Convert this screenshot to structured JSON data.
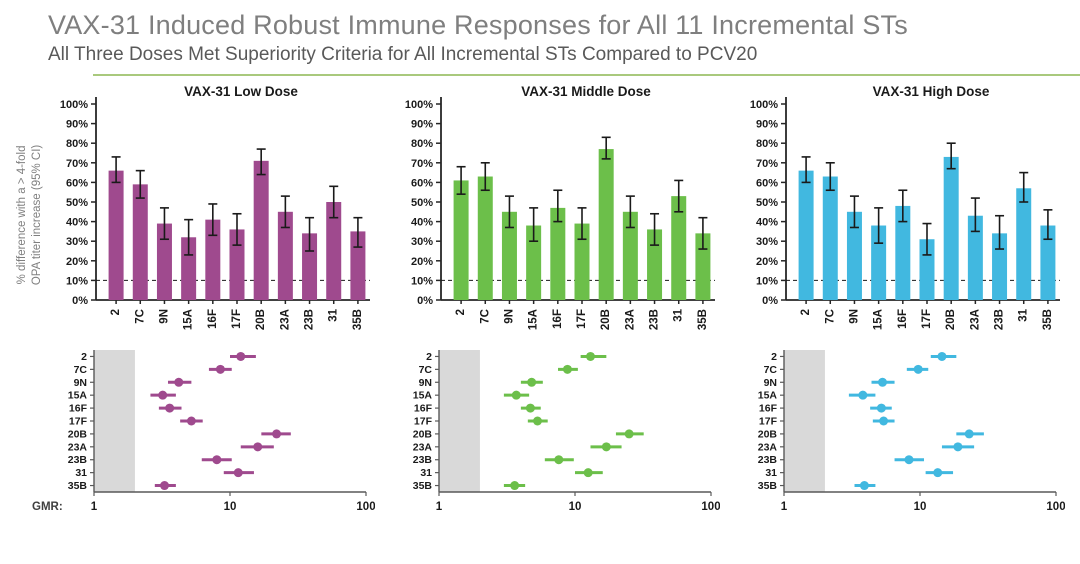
{
  "slide": {
    "title": "VAX-31 Induced Robust Immune Responses for All 11 Incremental STs",
    "subtitle": "All Three Doses Met Superiority Criteria for All Incremental STs Compared to PCV20",
    "accent_color": "#a9c97d"
  },
  "y_axis_label": {
    "line1": "% difference with a > 4-fold",
    "line2": "OPA titer increase (95% CI)"
  },
  "serotypes": [
    "2",
    "7C",
    "9N",
    "15A",
    "16F",
    "17F",
    "20B",
    "23A",
    "23B",
    "31",
    "35B"
  ],
  "chart_data": [
    {
      "type": "bar",
      "title": "VAX-31 Low Dose",
      "color": "#9f4a8e",
      "ylabel": "% difference with a > 4-fold OPA titer increase (95% CI)",
      "ylim": [
        0,
        100
      ],
      "ytick_step": 10,
      "ytick_suffix": "%",
      "threshold_line": 10,
      "grid": false,
      "categories": [
        "2",
        "7C",
        "9N",
        "15A",
        "16F",
        "17F",
        "20B",
        "23A",
        "23B",
        "31",
        "35B"
      ],
      "values": [
        66,
        59,
        39,
        32,
        41,
        36,
        71,
        45,
        34,
        50,
        35
      ],
      "ci_low": [
        60,
        52,
        31,
        23,
        33,
        28,
        64,
        37,
        25,
        42,
        27
      ],
      "ci_high": [
        73,
        66,
        47,
        41,
        49,
        44,
        77,
        53,
        42,
        58,
        42
      ]
    },
    {
      "type": "bar",
      "title": "VAX-31 Middle Dose",
      "color": "#6cbf4a",
      "ylabel": "% difference with a > 4-fold OPA titer increase (95% CI)",
      "ylim": [
        0,
        100
      ],
      "ytick_step": 10,
      "ytick_suffix": "%",
      "threshold_line": 10,
      "grid": false,
      "categories": [
        "2",
        "7C",
        "9N",
        "15A",
        "16F",
        "17F",
        "20B",
        "23A",
        "23B",
        "31",
        "35B"
      ],
      "values": [
        61,
        63,
        45,
        38,
        47,
        39,
        77,
        45,
        36,
        53,
        34
      ],
      "ci_low": [
        54,
        56,
        37,
        30,
        40,
        31,
        72,
        37,
        28,
        45,
        26
      ],
      "ci_high": [
        68,
        70,
        53,
        47,
        56,
        47,
        83,
        53,
        44,
        61,
        42
      ]
    },
    {
      "type": "bar",
      "title": "VAX-31 High Dose",
      "color": "#41b8e0",
      "ylabel": "% difference with a > 4-fold OPA titer increase (95% CI)",
      "ylim": [
        0,
        100
      ],
      "ytick_step": 10,
      "ytick_suffix": "%",
      "threshold_line": 10,
      "grid": false,
      "categories": [
        "2",
        "7C",
        "9N",
        "15A",
        "16F",
        "17F",
        "20B",
        "23A",
        "23B",
        "31",
        "35B"
      ],
      "values": [
        66,
        63,
        45,
        38,
        48,
        31,
        73,
        43,
        34,
        57,
        38
      ],
      "ci_low": [
        60,
        56,
        37,
        29,
        40,
        23,
        67,
        35,
        26,
        50,
        31
      ],
      "ci_high": [
        73,
        70,
        53,
        47,
        56,
        39,
        80,
        52,
        43,
        65,
        46
      ]
    },
    {
      "type": "scatter",
      "subtype": "forest",
      "dose": "VAX-31 Low Dose",
      "color": "#9f4a8e",
      "xlabel": "GMR:",
      "xscale": "log",
      "xlim": [
        1,
        100
      ],
      "xticks": [
        1,
        10,
        100
      ],
      "shaded_region": [
        1,
        2
      ],
      "shaded_color": "#d9d9d9",
      "categories": [
        "2",
        "7C",
        "9N",
        "15A",
        "16F",
        "17F",
        "20B",
        "23A",
        "23B",
        "31",
        "35B"
      ],
      "values": [
        12,
        8.5,
        4.2,
        3.2,
        3.6,
        5.2,
        22,
        16,
        8,
        11.5,
        3.3
      ],
      "ci_low": [
        10,
        7,
        3.5,
        2.6,
        3.0,
        4.3,
        17,
        12,
        6.2,
        9,
        2.8
      ],
      "ci_high": [
        15.5,
        10.3,
        5.2,
        4.0,
        4.4,
        6.3,
        28,
        21,
        10.3,
        15,
        4.0
      ]
    },
    {
      "type": "scatter",
      "subtype": "forest",
      "dose": "VAX-31 Middle Dose",
      "color": "#6cbf4a",
      "xlabel": "",
      "xscale": "log",
      "xlim": [
        1,
        100
      ],
      "xticks": [
        1,
        10,
        100
      ],
      "shaded_region": [
        1,
        2
      ],
      "shaded_color": "#d9d9d9",
      "categories": [
        "2",
        "7C",
        "9N",
        "15A",
        "16F",
        "17F",
        "20B",
        "23A",
        "23B",
        "31",
        "35B"
      ],
      "values": [
        13,
        8.8,
        4.8,
        3.7,
        4.7,
        5.3,
        25,
        17,
        7.6,
        12.5,
        3.6
      ],
      "ci_low": [
        11,
        7.5,
        4.0,
        3.0,
        4.0,
        4.5,
        20,
        13,
        6.0,
        10,
        3.0
      ],
      "ci_high": [
        17,
        10.5,
        5.8,
        4.6,
        5.6,
        6.3,
        32,
        22,
        9.8,
        16,
        4.3
      ]
    },
    {
      "type": "scatter",
      "subtype": "forest",
      "dose": "VAX-31 High Dose",
      "color": "#41b8e0",
      "xlabel": "",
      "xscale": "log",
      "xlim": [
        1,
        100
      ],
      "xticks": [
        1,
        10,
        100
      ],
      "shaded_region": [
        1,
        2
      ],
      "shaded_color": "#d9d9d9",
      "categories": [
        "2",
        "7C",
        "9N",
        "15A",
        "16F",
        "17F",
        "20B",
        "23A",
        "23B",
        "31",
        "35B"
      ],
      "values": [
        14.5,
        9.7,
        5.3,
        3.8,
        5.2,
        5.4,
        23,
        19,
        8.3,
        13.5,
        3.9
      ],
      "ci_low": [
        12,
        8.0,
        4.4,
        3.0,
        4.3,
        4.5,
        18.5,
        14.5,
        6.5,
        11,
        3.3
      ],
      "ci_high": [
        18.5,
        11.5,
        6.5,
        4.7,
        6.2,
        6.5,
        29.5,
        25,
        10.7,
        17.5,
        4.7
      ]
    }
  ]
}
